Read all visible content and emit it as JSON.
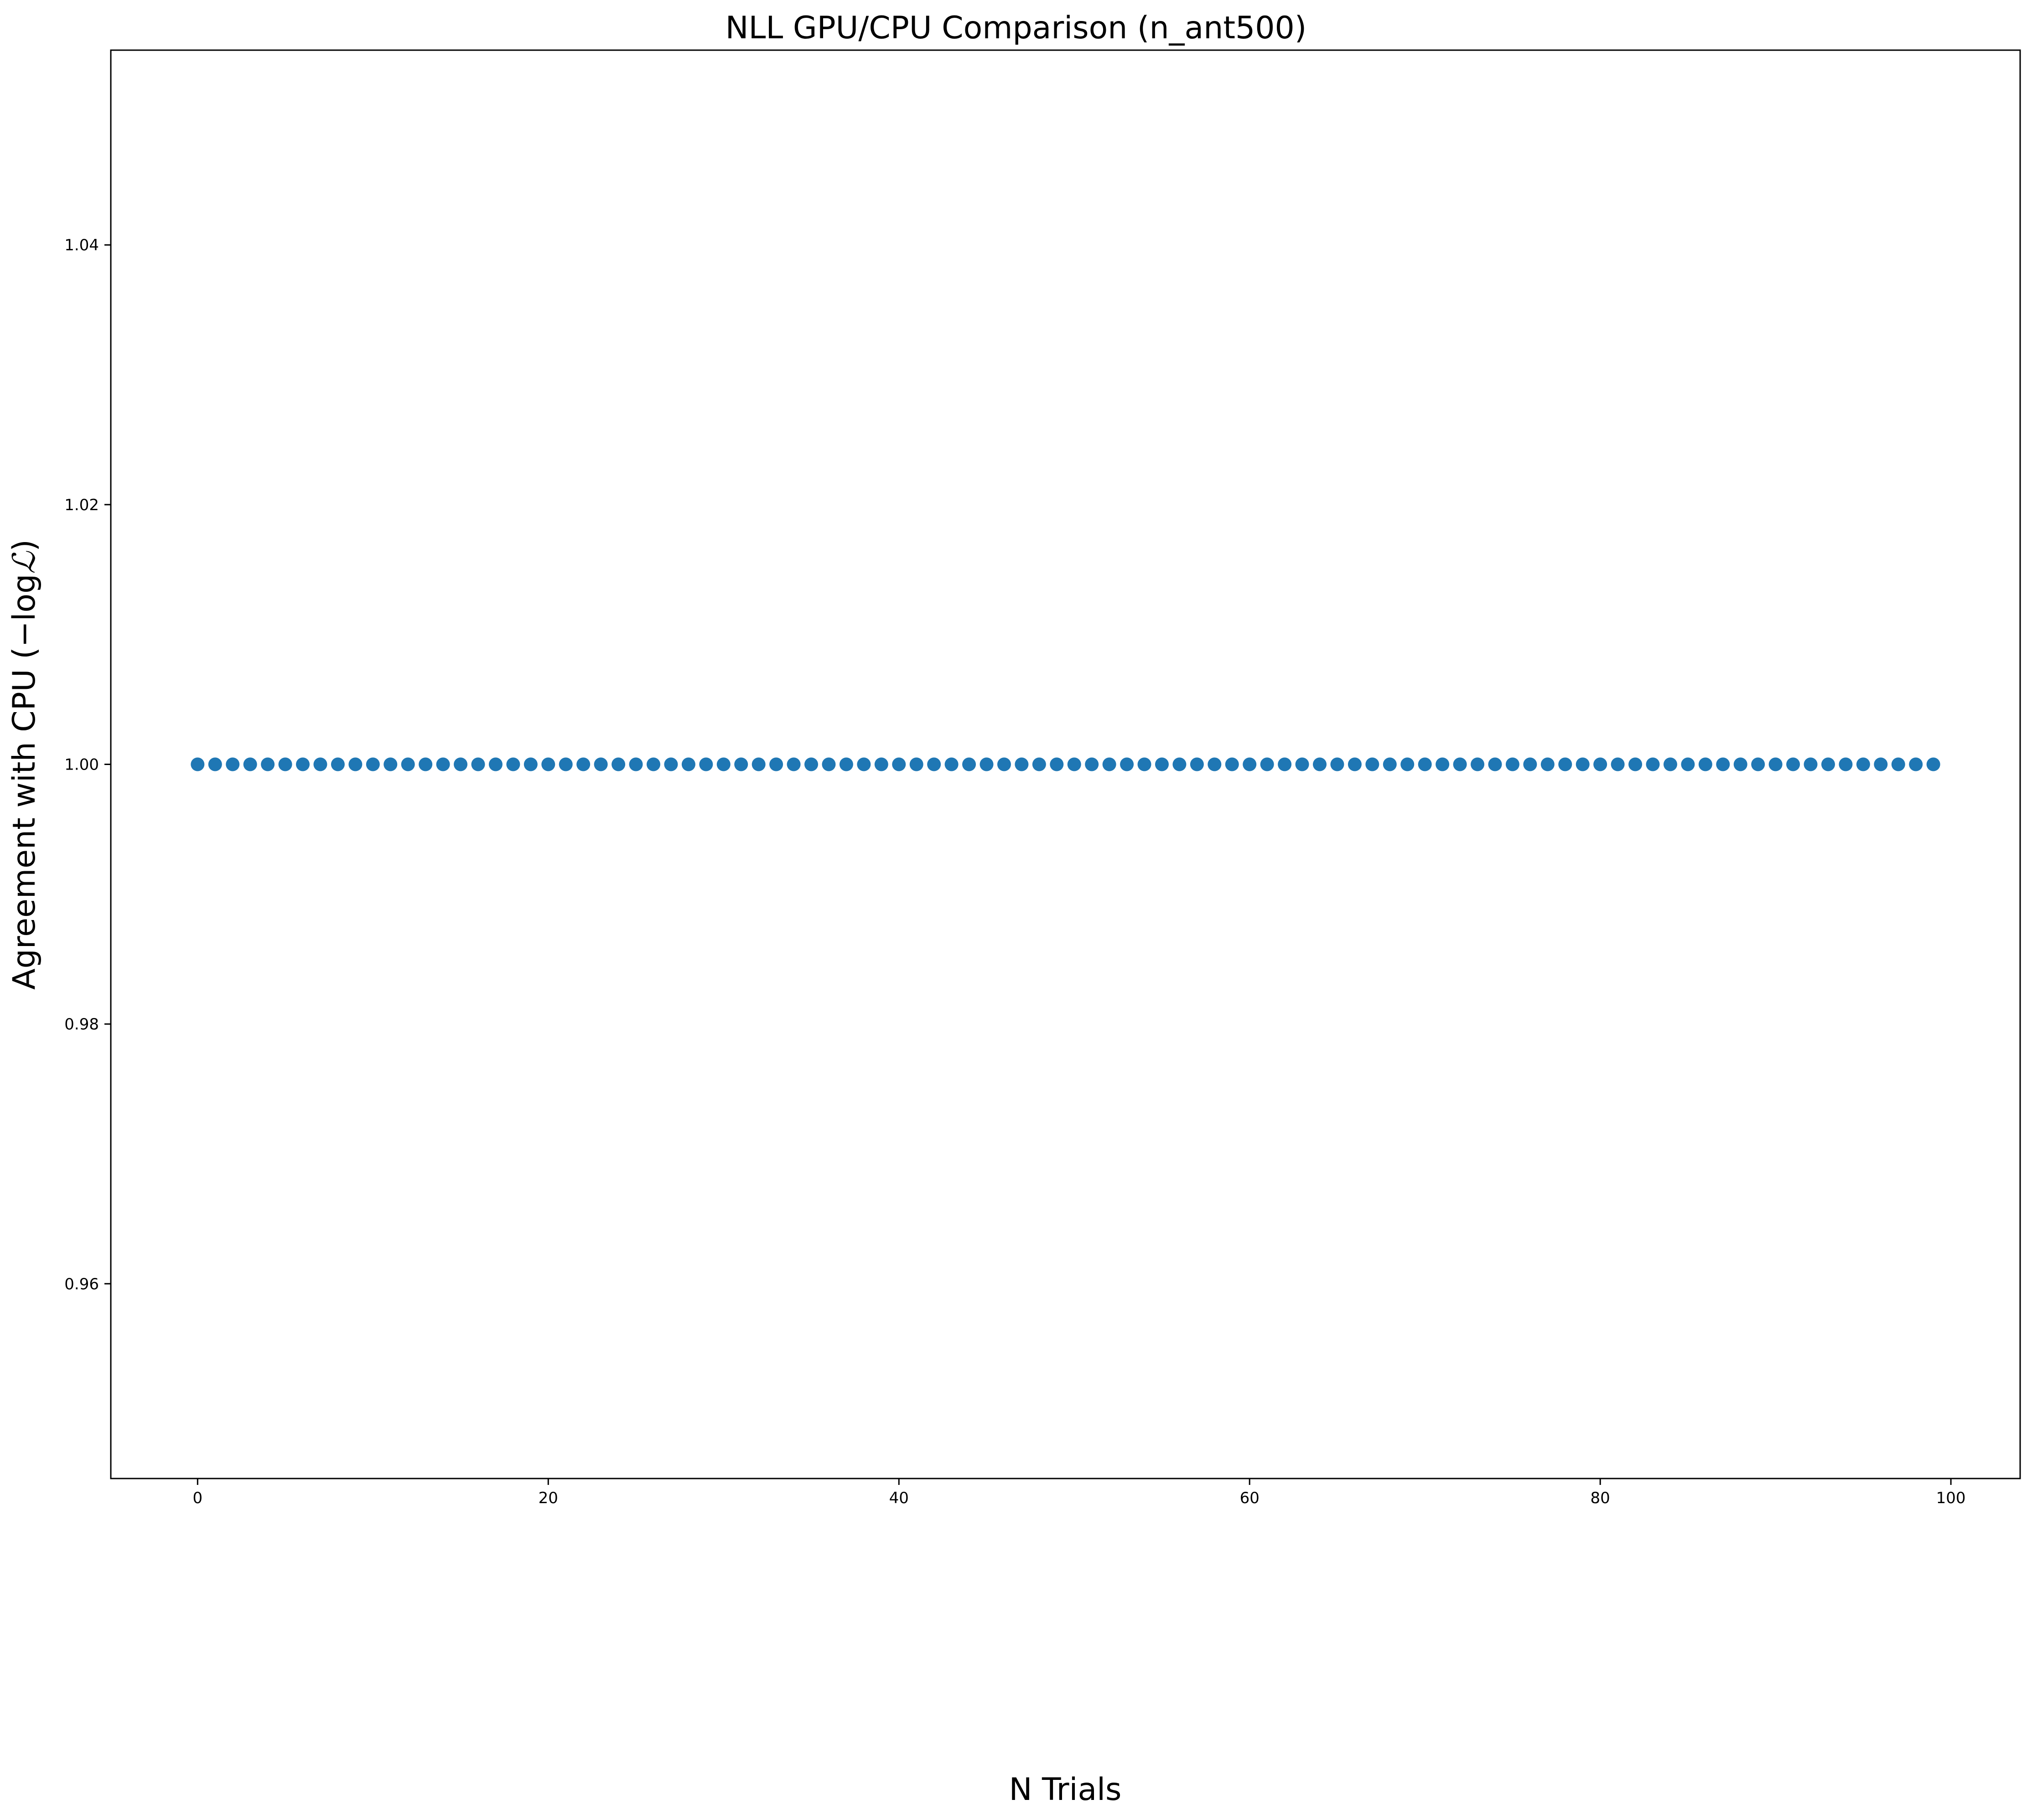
{
  "chart_data": {
    "type": "scatter",
    "title": "NLL GPU/CPU Comparison (n_ant500)",
    "xlabel": "N Trials",
    "ylabel_text": "Agreement with CPU (−log",
    "ylabel_symbol": "ℒ",
    "ylabel_close": ")",
    "xlim": [
      -4.95,
      103.95
    ],
    "ylim": [
      0.945,
      1.055
    ],
    "xticks": [
      0,
      20,
      40,
      60,
      80,
      100
    ],
    "xtick_labels": [
      "0",
      "20",
      "40",
      "60",
      "80",
      "100"
    ],
    "yticks": [
      0.96,
      0.98,
      1.0,
      1.02,
      1.04
    ],
    "ytick_labels": [
      "0.96",
      "0.98",
      "1.00",
      "1.02",
      "1.04"
    ],
    "grid": false,
    "marker_color": "#1f77b4",
    "series": [
      {
        "x": [
          0,
          1,
          2,
          3,
          4,
          5,
          6,
          7,
          8,
          9,
          10,
          11,
          12,
          13,
          14,
          15,
          16,
          17,
          18,
          19,
          20,
          21,
          22,
          23,
          24,
          25,
          26,
          27,
          28,
          29,
          30,
          31,
          32,
          33,
          34,
          35,
          36,
          37,
          38,
          39,
          40,
          41,
          42,
          43,
          44,
          45,
          46,
          47,
          48,
          49,
          50,
          51,
          52,
          53,
          54,
          55,
          56,
          57,
          58,
          59,
          60,
          61,
          62,
          63,
          64,
          65,
          66,
          67,
          68,
          69,
          70,
          71,
          72,
          73,
          74,
          75,
          76,
          77,
          78,
          79,
          80,
          81,
          82,
          83,
          84,
          85,
          86,
          87,
          88,
          89,
          90,
          91,
          92,
          93,
          94,
          95,
          96,
          97,
          98,
          99
        ],
        "y": [
          1,
          1,
          1,
          1,
          1,
          1,
          1,
          1,
          1,
          1,
          1,
          1,
          1,
          1,
          1,
          1,
          1,
          1,
          1,
          1,
          1,
          1,
          1,
          1,
          1,
          1,
          1,
          1,
          1,
          1,
          1,
          1,
          1,
          1,
          1,
          1,
          1,
          1,
          1,
          1,
          1,
          1,
          1,
          1,
          1,
          1,
          1,
          1,
          1,
          1,
          1,
          1,
          1,
          1,
          1,
          1,
          1,
          1,
          1,
          1,
          1,
          1,
          1,
          1,
          1,
          1,
          1,
          1,
          1,
          1,
          1,
          1,
          1,
          1,
          1,
          1,
          1,
          1,
          1,
          1,
          1,
          1,
          1,
          1,
          1,
          1,
          1,
          1,
          1,
          1,
          1,
          1,
          1,
          1,
          1,
          1,
          1,
          1,
          1,
          1
        ]
      }
    ]
  }
}
